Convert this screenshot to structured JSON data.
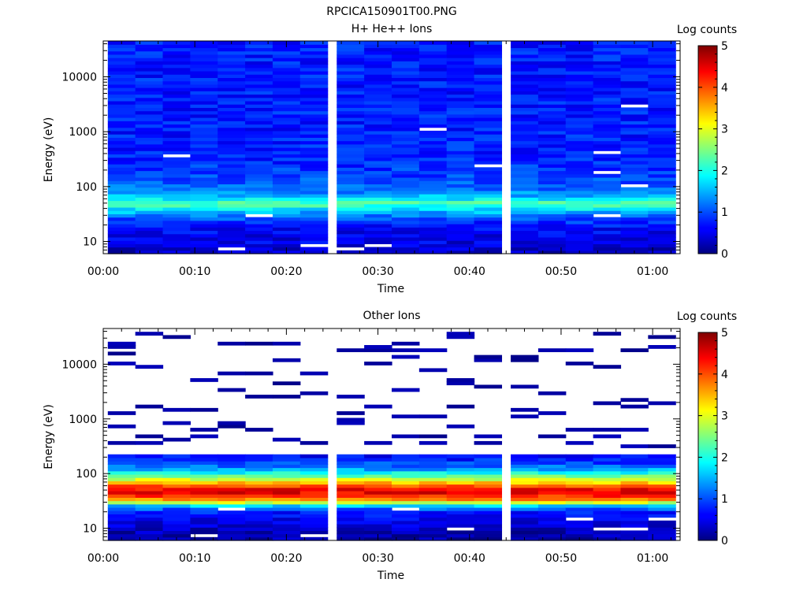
{
  "figure_title": "RPCICA150901T00.PNG",
  "chart_data": [
    {
      "type": "heatmap",
      "title": "H+ He++ Ions",
      "xlabel": "Time",
      "ylabel": "Energy (eV)",
      "colorbar_label": "Log counts",
      "colorbar_range": [
        0,
        5
      ],
      "colorbar_ticks": [
        "0",
        "1",
        "2",
        "3",
        "4",
        "5"
      ],
      "colormap": "jet",
      "y_scale": "log",
      "ylim": [
        6,
        45000
      ],
      "y_ticks": [
        10,
        100,
        1000,
        10000
      ],
      "y_tick_labels": [
        "10",
        "100",
        "1000",
        "10000"
      ],
      "x_range_minutes": [
        0,
        63
      ],
      "x_ticks": [
        "00:00",
        "00:10",
        "00:20",
        "00:30",
        "00:40",
        "00:50",
        "01:00"
      ],
      "time_columns": [
        "00:02",
        "00:05",
        "00:08",
        "00:11",
        "00:14",
        "00:17",
        "00:20",
        "00:23",
        "00:27",
        "00:30",
        "00:33",
        "00:36",
        "00:39",
        "00:42",
        "00:46",
        "00:49",
        "00:52",
        "00:55",
        "00:58",
        "01:01"
      ],
      "energy_profile_log_counts": [
        {
          "energy_ev": 7,
          "value": 0.35
        },
        {
          "energy_ev": 9,
          "value": 0.5
        },
        {
          "energy_ev": 12,
          "value": 0.55
        },
        {
          "energy_ev": 16,
          "value": 0.6
        },
        {
          "energy_ev": 22,
          "value": 0.8
        },
        {
          "energy_ev": 30,
          "value": 1.2
        },
        {
          "energy_ev": 38,
          "value": 1.7
        },
        {
          "energy_ev": 50,
          "value": 2.3
        },
        {
          "energy_ev": 65,
          "value": 1.6
        },
        {
          "energy_ev": 90,
          "value": 1.15
        },
        {
          "energy_ev": 150,
          "value": 0.95
        },
        {
          "energy_ev": 300,
          "value": 0.8
        },
        {
          "energy_ev": 1000,
          "value": 0.75
        },
        {
          "energy_ev": 5000,
          "value": 0.75
        },
        {
          "energy_ev": 40000,
          "value": 0.75
        }
      ],
      "empty_bins": [
        {
          "time": "00:14",
          "energy_ev": 7.5
        },
        {
          "time": "00:17",
          "energy_ev": 29
        },
        {
          "time": "00:23",
          "energy_ev": 8.7
        },
        {
          "time": "00:27",
          "energy_ev": 7.5
        },
        {
          "time": "00:30",
          "energy_ev": 8.7
        },
        {
          "time": "00:36",
          "energy_ev": 1100
        },
        {
          "time": "00:42",
          "energy_ev": 240
        },
        {
          "time": "00:55",
          "energy_ev": 180
        },
        {
          "time": "00:55",
          "energy_ev": 430
        },
        {
          "time": "00:55",
          "energy_ev": 30
        },
        {
          "time": "00:58",
          "energy_ev": 110
        },
        {
          "time": "00:58",
          "energy_ev": 3100
        },
        {
          "time": "00:08",
          "energy_ev": 380
        }
      ]
    },
    {
      "type": "heatmap",
      "title": "Other Ions",
      "xlabel": "Time",
      "ylabel": "Energy (eV)",
      "colorbar_label": "Log counts",
      "colorbar_range": [
        0,
        5
      ],
      "colorbar_ticks": [
        "0",
        "1",
        "2",
        "3",
        "4",
        "5"
      ],
      "colormap": "jet",
      "y_scale": "log",
      "ylim": [
        6,
        45000
      ],
      "y_ticks": [
        10,
        100,
        1000,
        10000
      ],
      "y_tick_labels": [
        "10",
        "100",
        "1000",
        "10000"
      ],
      "x_range_minutes": [
        0,
        63
      ],
      "x_ticks": [
        "00:00",
        "00:10",
        "00:20",
        "00:30",
        "00:40",
        "00:50",
        "01:00"
      ],
      "time_columns": [
        "00:02",
        "00:05",
        "00:08",
        "00:11",
        "00:14",
        "00:17",
        "00:20",
        "00:23",
        "00:27",
        "00:30",
        "00:33",
        "00:36",
        "00:39",
        "00:42",
        "00:46",
        "00:49",
        "00:52",
        "00:55",
        "00:58",
        "01:01"
      ],
      "energy_profile_log_counts": [
        {
          "energy_ev": 7,
          "value": 0.2
        },
        {
          "energy_ev": 9,
          "value": 0.3
        },
        {
          "energy_ev": 12,
          "value": 0.45
        },
        {
          "energy_ev": 16,
          "value": 0.6
        },
        {
          "energy_ev": 21,
          "value": 0.8
        },
        {
          "energy_ev": 26,
          "value": 1.6
        },
        {
          "energy_ev": 30,
          "value": 2.9
        },
        {
          "energy_ev": 35,
          "value": 3.8
        },
        {
          "energy_ev": 42,
          "value": 4.4
        },
        {
          "energy_ev": 50,
          "value": 4.5
        },
        {
          "energy_ev": 60,
          "value": 3.9
        },
        {
          "energy_ev": 75,
          "value": 3.1
        },
        {
          "energy_ev": 95,
          "value": 2.2
        },
        {
          "energy_ev": 130,
          "value": 1.2
        },
        {
          "energy_ev": 200,
          "value": 0.65
        }
      ],
      "upper_energy_hits_ev": [
        [
          22000,
          25000,
          15000,
          11000,
          1300,
          700,
          350
        ],
        [
          35000,
          9500,
          1800,
          500,
          350
        ],
        [
          33000,
          30000,
          1400,
          900,
          450
        ],
        [
          5500,
          1500,
          600,
          500
        ],
        [
          24000,
          6500,
          3300,
          850,
          700
        ],
        [
          6500,
          24000,
          2500,
          600
        ],
        [
          24000,
          12000,
          4800,
          2700,
          400
        ],
        [
          6800,
          3000,
          380
        ],
        [
          19000,
          2500,
          1300,
          1000,
          800
        ],
        [
          21000,
          18000,
          10500,
          1800,
          350
        ],
        [
          24000,
          19000,
          13000,
          3200,
          1100,
          500
        ],
        [
          17000,
          8000,
          1100,
          500,
          350
        ],
        [
          39000,
          34000,
          5000,
          4500,
          1600,
          700
        ],
        [
          14000,
          12000,
          3700,
          500,
          350
        ],
        [
          13000,
          12000,
          4000,
          1400,
          1100
        ],
        [
          18000,
          2800,
          1200,
          500
        ],
        [
          18000,
          11000,
          600,
          350
        ],
        [
          37000,
          9500,
          2000,
          650,
          500
        ],
        [
          18000,
          2300,
          1600,
          650,
          300
        ],
        [
          31000,
          21000,
          1900,
          300
        ]
      ],
      "empty_bins": [
        {
          "time": "00:11",
          "energy_ev": 7.5
        },
        {
          "time": "00:14",
          "energy_ev": 22
        },
        {
          "time": "00:23",
          "energy_ev": 7.5
        },
        {
          "time": "00:33",
          "energy_ev": 22
        },
        {
          "time": "00:39",
          "energy_ev": 10
        },
        {
          "time": "00:52",
          "energy_ev": 14
        },
        {
          "time": "00:55",
          "energy_ev": 10
        },
        {
          "time": "00:58",
          "energy_ev": 10
        },
        {
          "time": "01:01",
          "energy_ev": 14
        }
      ]
    }
  ]
}
